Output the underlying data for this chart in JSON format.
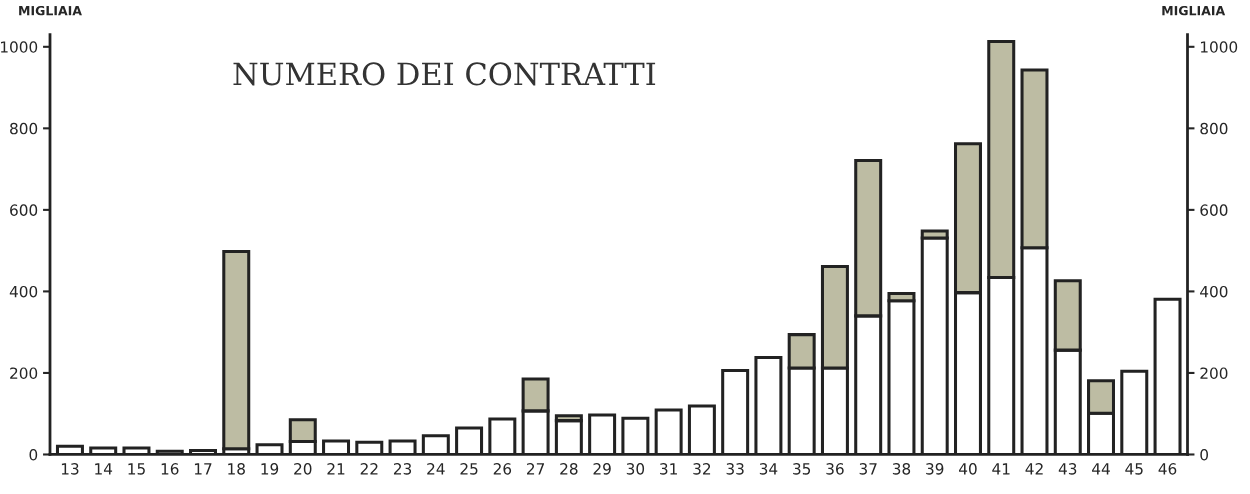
{
  "chart_data": {
    "type": "bar",
    "title": "NUMERO DEI CONTRATTI",
    "ylabel": "MIGLIAIA",
    "y2label": "MIGLIAIA",
    "categories": [
      "13",
      "14",
      "15",
      "16",
      "17",
      "18",
      "19",
      "20",
      "21",
      "22",
      "23",
      "24",
      "25",
      "26",
      "27",
      "28",
      "29",
      "30",
      "31",
      "32",
      "33",
      "34",
      "35",
      "36",
      "37",
      "38",
      "39",
      "40",
      "41",
      "42",
      "43",
      "44",
      "45",
      "46"
    ],
    "stacked": true,
    "series": [
      {
        "color": "#ffffff",
        "values": [
          20,
          16,
          16,
          8,
          10,
          14,
          24,
          32,
          33,
          30,
          33,
          46,
          65,
          87,
          107,
          83,
          97,
          89,
          109,
          119,
          206,
          238,
          212,
          212,
          340,
          377,
          531,
          397,
          434,
          507,
          256,
          101,
          204,
          381
        ]
      },
      {
        "color": "#bdbca3",
        "values": [
          null,
          null,
          null,
          null,
          null,
          484,
          null,
          53,
          null,
          null,
          null,
          null,
          null,
          null,
          78,
          12,
          null,
          null,
          null,
          null,
          null,
          null,
          82,
          249,
          381,
          18,
          17,
          365,
          579,
          436,
          170,
          80,
          null,
          null
        ]
      }
    ],
    "ylim": [
      0,
      1030
    ],
    "yticks": [
      0,
      200,
      400,
      600,
      800,
      1000
    ],
    "y2lim": [
      0,
      1030
    ],
    "y2ticks": [
      0,
      200,
      400,
      600,
      800,
      1000
    ],
    "grid": false
  }
}
